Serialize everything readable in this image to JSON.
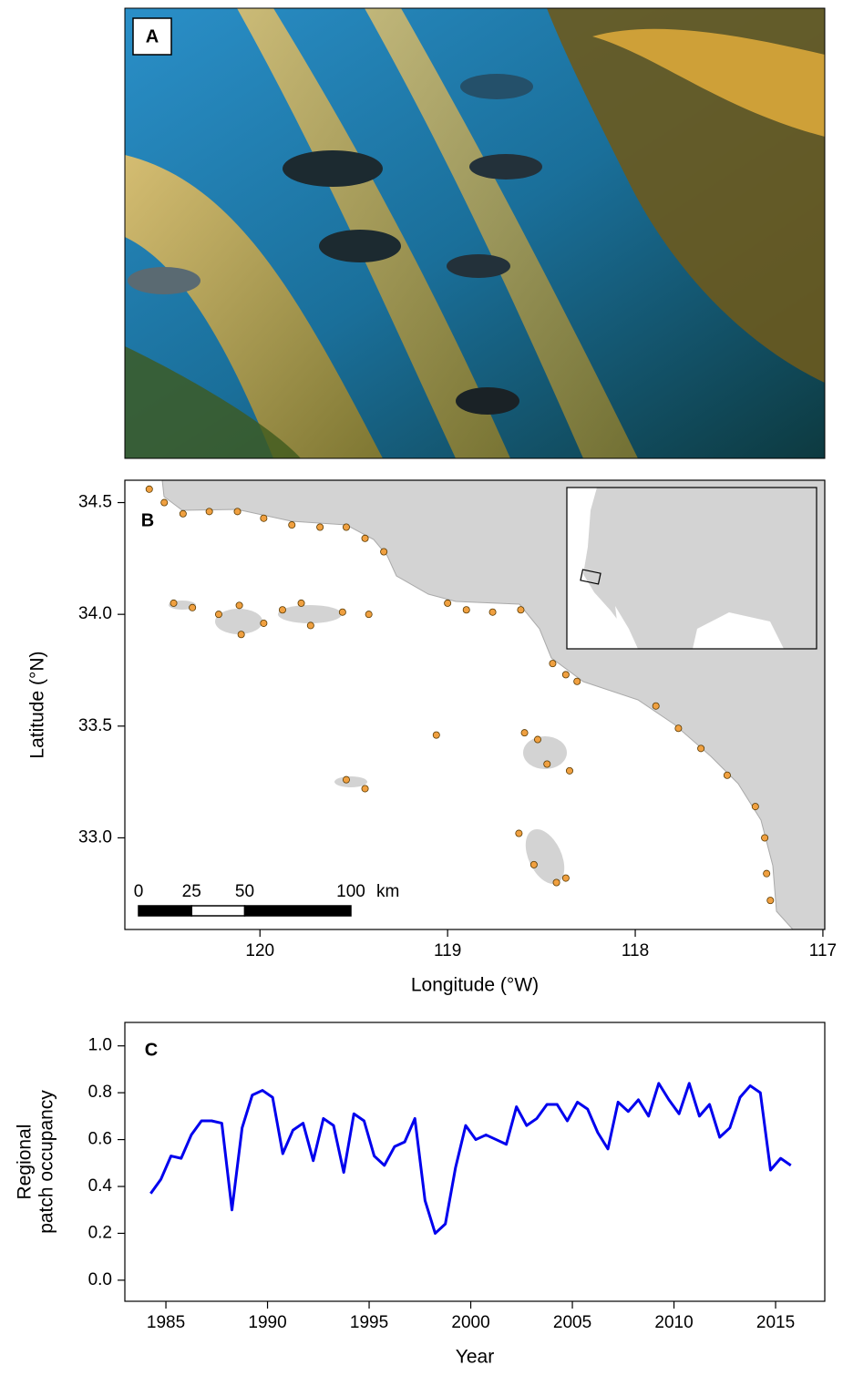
{
  "chart_data": [
    {
      "type": "image",
      "label": "A"
    },
    {
      "type": "map",
      "label": "B",
      "xlabel": "Longitude (°W)",
      "ylabel": "Latitude (°N)",
      "xlim": [
        120.72,
        116.99
      ],
      "xticks": [
        120,
        119,
        118,
        117
      ],
      "ylim": [
        32.59,
        34.6
      ],
      "yticks": [
        {
          "value": 33,
          "label": "33.0"
        },
        33.5,
        {
          "value": 34,
          "label": "34.0"
        },
        34.5
      ],
      "point_color": "#f0a040",
      "lon": [
        120.59,
        120.51,
        120.41,
        120.27,
        120.12,
        119.98,
        119.83,
        119.68,
        119.54,
        119.44,
        119.34,
        119.0,
        118.9,
        118.76,
        118.61,
        118.44,
        118.37,
        118.31,
        117.89,
        117.77,
        117.65,
        117.51,
        117.36,
        117.31,
        117.3,
        117.28,
        120.46,
        120.36,
        120.22,
        120.1,
        119.98,
        120.11,
        119.88,
        119.73,
        119.56,
        119.78,
        119.42,
        119.06,
        119.54,
        119.44,
        118.59,
        118.47,
        118.35,
        118.52,
        118.62,
        118.54,
        118.42,
        118.37
      ],
      "lat": [
        34.56,
        34.5,
        34.45,
        34.46,
        34.46,
        34.43,
        34.4,
        34.39,
        34.39,
        34.34,
        34.28,
        34.05,
        34.02,
        34.01,
        34.02,
        33.78,
        33.73,
        33.7,
        33.59,
        33.49,
        33.4,
        33.28,
        33.14,
        33.0,
        32.84,
        32.72,
        34.05,
        34.03,
        34.0,
        33.91,
        33.96,
        34.04,
        34.02,
        33.95,
        34.01,
        34.05,
        34.0,
        33.46,
        33.26,
        33.22,
        33.47,
        33.33,
        33.3,
        33.44,
        33.02,
        32.88,
        32.8,
        32.82
      ],
      "scale_bar": {
        "ticks": [
          0,
          25,
          50,
          100
        ],
        "unit": "km"
      }
    },
    {
      "type": "line",
      "label": "C",
      "xlabel": "Year",
      "ylabel": [
        "Regional",
        "patch occupancy"
      ],
      "color": "#0000ee",
      "xlim": [
        1982.98,
        2017.42
      ],
      "xticks": [
        1985,
        1990,
        1995,
        2000,
        2005,
        2010,
        2015
      ],
      "ylim": [
        -0.09,
        1.1
      ],
      "yticks": [
        {
          "value": 0,
          "label": "0.0"
        },
        0.2,
        0.4,
        0.6,
        0.8,
        {
          "value": 1,
          "label": "1.0"
        }
      ],
      "x": [
        1984.25,
        1984.75,
        1985.25,
        1985.75,
        1986.25,
        1986.75,
        1987.25,
        1987.75,
        1988.25,
        1988.75,
        1989.25,
        1989.75,
        1990.25,
        1990.75,
        1991.25,
        1991.75,
        1992.25,
        1992.75,
        1993.25,
        1993.75,
        1994.25,
        1994.75,
        1995.25,
        1995.75,
        1996.25,
        1996.75,
        1997.25,
        1997.75,
        1998.25,
        1998.75,
        1999.25,
        1999.75,
        2000.25,
        2000.75,
        2001.25,
        2001.75,
        2002.25,
        2002.75,
        2003.25,
        2003.75,
        2004.25,
        2004.75,
        2005.25,
        2005.75,
        2006.25,
        2006.75,
        2007.25,
        2007.75,
        2008.25,
        2008.75,
        2009.25,
        2009.75,
        2010.25,
        2010.75,
        2011.25,
        2011.75,
        2012.25,
        2012.75,
        2013.25,
        2013.75,
        2014.25,
        2014.75,
        2015.25,
        2015.75
      ],
      "values": [
        0.37,
        0.43,
        0.53,
        0.52,
        0.62,
        0.68,
        0.68,
        0.67,
        0.3,
        0.65,
        0.79,
        0.81,
        0.78,
        0.54,
        0.64,
        0.67,
        0.51,
        0.69,
        0.66,
        0.46,
        0.71,
        0.68,
        0.53,
        0.49,
        0.57,
        0.59,
        0.69,
        0.34,
        0.2,
        0.24,
        0.48,
        0.66,
        0.6,
        0.62,
        0.6,
        0.58,
        0.74,
        0.66,
        0.69,
        0.75,
        0.75,
        0.68,
        0.76,
        0.73,
        0.63,
        0.56,
        0.76,
        0.72,
        0.77,
        0.7,
        0.84,
        0.77,
        0.71,
        0.84,
        0.7,
        0.75,
        0.61,
        0.65,
        0.78,
        0.83,
        0.8,
        0.47,
        0.52,
        0.49
      ]
    }
  ]
}
